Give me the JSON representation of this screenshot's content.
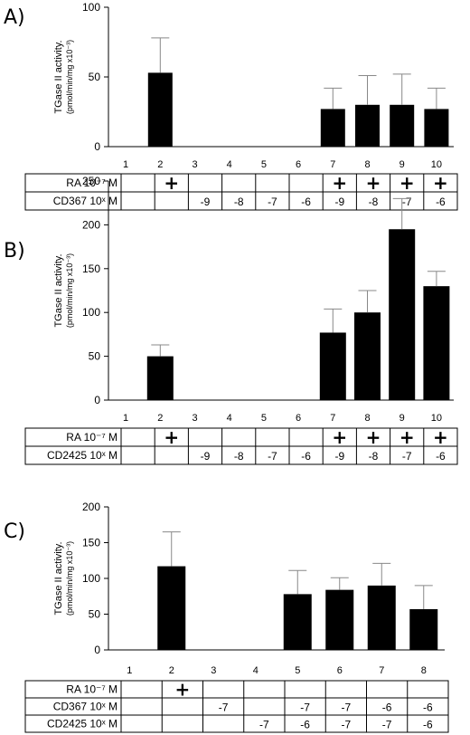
{
  "chart_data": [
    {
      "type": "bar",
      "panel_label": "A)",
      "ylabel": "TGase II activity.",
      "ylabel_unit": "(pmol/min/mg x10⁻³)",
      "yticks": [
        "0",
        "50",
        "100"
      ],
      "ylim": [
        0,
        100
      ],
      "categories": [
        "1",
        "2",
        "3",
        "4",
        "5",
        "6",
        "7",
        "8",
        "9",
        "10"
      ],
      "values": [
        0,
        53,
        0,
        0,
        0,
        0,
        27,
        30,
        30,
        27
      ],
      "errors": [
        0,
        25,
        0,
        0,
        0,
        0,
        15,
        21,
        22,
        15
      ],
      "table_rows": [
        {
          "label": "RA 10⁻⁷ M",
          "cells": [
            "",
            "+",
            "",
            "",
            "",
            "",
            "+",
            "+",
            "+",
            "+"
          ]
        },
        {
          "label": "CD367 10ˣ M",
          "cells": [
            "",
            "",
            "-9",
            "-8",
            "-7",
            "-6",
            "-9",
            "-8",
            "-7",
            "-6"
          ]
        }
      ]
    },
    {
      "type": "bar",
      "panel_label": "B)",
      "ylabel": "TGase II activity.",
      "ylabel_unit": "(pmol/min/mg x10⁻³)",
      "yticks": [
        "0",
        "50",
        "100",
        "150",
        "200",
        "250"
      ],
      "ylim": [
        0,
        250
      ],
      "categories": [
        "1",
        "2",
        "3",
        "4",
        "5",
        "6",
        "7",
        "8",
        "9",
        "10"
      ],
      "values": [
        0,
        50,
        0,
        0,
        0,
        0,
        77,
        100,
        195,
        130
      ],
      "errors": [
        0,
        13,
        0,
        0,
        0,
        0,
        27,
        25,
        35,
        17
      ],
      "table_rows": [
        {
          "label": "RA 10⁻⁷ M",
          "cells": [
            "",
            "+",
            "",
            "",
            "",
            "",
            "+",
            "+",
            "+",
            "+"
          ]
        },
        {
          "label": "CD2425 10ˣ M",
          "cells": [
            "",
            "",
            "-9",
            "-8",
            "-7",
            "-6",
            "-9",
            "-8",
            "-7",
            "-6"
          ]
        }
      ]
    },
    {
      "type": "bar",
      "panel_label": "C)",
      "ylabel": "TGase II activity.",
      "ylabel_unit": "(pmol/min/mg x10⁻³)",
      "yticks": [
        "0",
        "50",
        "100",
        "150",
        "200"
      ],
      "ylim": [
        0,
        200
      ],
      "categories": [
        "1",
        "2",
        "3",
        "4",
        "5",
        "6",
        "7",
        "8"
      ],
      "values": [
        0,
        117,
        0,
        0,
        78,
        84,
        90,
        57
      ],
      "errors": [
        0,
        48,
        0,
        0,
        33,
        17,
        31,
        33
      ],
      "table_rows": [
        {
          "label": "RA 10⁻⁷ M",
          "cells": [
            "",
            "+",
            "",
            "",
            "",
            "",
            "",
            ""
          ]
        },
        {
          "label": "CD367 10ˣ M",
          "cells": [
            "",
            "",
            "-7",
            "",
            "-7",
            "-7",
            "-6",
            "-6"
          ]
        },
        {
          "label": "CD2425 10ˣ M",
          "cells": [
            "",
            "",
            "",
            "-7",
            "-6",
            "-7",
            "-7",
            "-6"
          ]
        }
      ]
    }
  ],
  "colors": {
    "bar": "#000000",
    "line": "#000000",
    "error_bar": "#888888"
  }
}
